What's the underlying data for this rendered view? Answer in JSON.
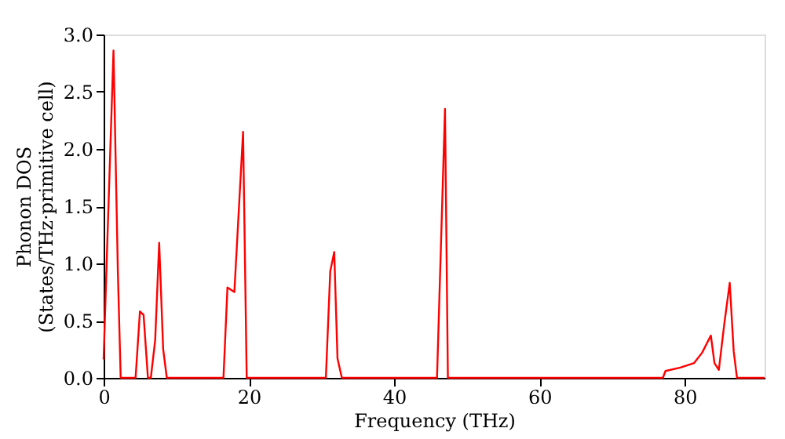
{
  "chart_data": {
    "type": "line",
    "xlabel": "Frequency (THz)",
    "ylabel": "Phonon DOS\n(States/THz·primitive cell)",
    "x": [
      0,
      0.45,
      1.36,
      1.96,
      2.35,
      4.4,
      5.0,
      5.5,
      6.1,
      6.5,
      7.1,
      7.65,
      8.2,
      8.7,
      16.5,
      17.05,
      18.0,
      19.2,
      19.7,
      30.6,
      31.2,
      31.75,
      32.2,
      32.8,
      45.9,
      47.0,
      47.4,
      77.0,
      77.35,
      79.4,
      81.3,
      82.4,
      83.6,
      84.1,
      84.7,
      85.45,
      86.2,
      86.75,
      87.2,
      91
    ],
    "series": [
      {
        "color": "#ff0000",
        "values": [
          0.16,
          1.07,
          2.86,
          0.93,
          0,
          0,
          0.58,
          0.55,
          0,
          0,
          0.33,
          1.18,
          0.25,
          0,
          0,
          0.79,
          0.75,
          2.15,
          0,
          0,
          0.93,
          1.1,
          0.17,
          0,
          0,
          2.35,
          0,
          0,
          0.06,
          0.09,
          0.13,
          0.22,
          0.37,
          0.13,
          0.07,
          0.47,
          0.83,
          0.23,
          0,
          0
        ]
      }
    ],
    "xlim": [
      0,
      91
    ],
    "xticks": [
      0,
      20,
      40,
      60,
      80
    ],
    "ylim": [
      0,
      3.0
    ],
    "yticks": [
      {
        "value": 0,
        "label": "0.0"
      },
      {
        "value": 0.5,
        "label": "0.5"
      },
      {
        "value": 1.0,
        "label": "1.0"
      },
      {
        "value": 1.5,
        "label": "1.5"
      },
      {
        "value": 2.0,
        "label": "2.0"
      },
      {
        "value": 2.5,
        "label": "2.5"
      },
      {
        "value": 3.0,
        "label": "3.0"
      }
    ],
    "grid": false,
    "legend": false,
    "line_style": "solid",
    "marker": "none"
  }
}
